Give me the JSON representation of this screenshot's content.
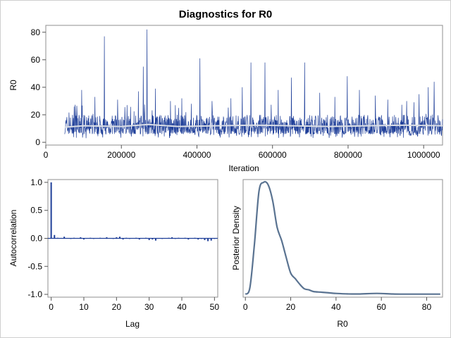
{
  "chart_data": [
    {
      "id": "trace",
      "type": "line",
      "title": "Diagnostics for R0",
      "xlabel": "Iteration",
      "ylabel": "R0",
      "xlim": [
        0,
        1050000
      ],
      "ylim": [
        -2,
        85
      ],
      "xticks": [
        0,
        200000,
        400000,
        600000,
        800000,
        1000000
      ],
      "xtick_labels": [
        "0",
        "200000",
        "400000",
        "600000",
        "800000",
        "1000000"
      ],
      "yticks": [
        0,
        20,
        40,
        60,
        80
      ],
      "ytick_labels": [
        "0",
        "20",
        "40",
        "60",
        "80"
      ],
      "series": [
        {
          "color": "#1f3f99",
          "x_range": [
            50000,
            1050000
          ],
          "typical_range": [
            4,
            24
          ],
          "spikes": [
            {
              "x": 75000,
              "y": 26
            },
            {
              "x": 95000,
              "y": 38
            },
            {
              "x": 130000,
              "y": 33
            },
            {
              "x": 155000,
              "y": 77
            },
            {
              "x": 190000,
              "y": 31
            },
            {
              "x": 215000,
              "y": 27
            },
            {
              "x": 245000,
              "y": 37
            },
            {
              "x": 258000,
              "y": 55
            },
            {
              "x": 268000,
              "y": 82
            },
            {
              "x": 290000,
              "y": 39
            },
            {
              "x": 330000,
              "y": 30
            },
            {
              "x": 360000,
              "y": 32
            },
            {
              "x": 385000,
              "y": 28
            },
            {
              "x": 408000,
              "y": 61
            },
            {
              "x": 440000,
              "y": 30
            },
            {
              "x": 490000,
              "y": 32
            },
            {
              "x": 520000,
              "y": 40
            },
            {
              "x": 543000,
              "y": 58
            },
            {
              "x": 580000,
              "y": 58
            },
            {
              "x": 615000,
              "y": 38
            },
            {
              "x": 650000,
              "y": 47
            },
            {
              "x": 685000,
              "y": 58
            },
            {
              "x": 725000,
              "y": 36
            },
            {
              "x": 765000,
              "y": 33
            },
            {
              "x": 798000,
              "y": 48
            },
            {
              "x": 830000,
              "y": 38
            },
            {
              "x": 872000,
              "y": 34
            },
            {
              "x": 905000,
              "y": 31
            },
            {
              "x": 955000,
              "y": 30
            },
            {
              "x": 988000,
              "y": 35
            },
            {
              "x": 1012000,
              "y": 40
            },
            {
              "x": 1028000,
              "y": 44
            }
          ]
        },
        {
          "color": "#d9dde6",
          "x": [
            50000,
            100000,
            200000,
            270000,
            350000,
            450000,
            550000,
            650000,
            750000,
            850000,
            950000,
            1050000
          ],
          "values": [
            11,
            12,
            11.5,
            13,
            11.5,
            12,
            12.5,
            12,
            11.5,
            12,
            12.5,
            12
          ]
        }
      ]
    },
    {
      "id": "acf",
      "type": "bar",
      "xlabel": "Lag",
      "ylabel": "Autocorrelation",
      "xlim": [
        -1,
        51
      ],
      "ylim": [
        -1.05,
        1.05
      ],
      "xticks": [
        0,
        10,
        20,
        30,
        40,
        50
      ],
      "xtick_labels": [
        "0",
        "10",
        "20",
        "30",
        "40",
        "50"
      ],
      "yticks": [
        -1.0,
        -0.5,
        0.0,
        0.5,
        1.0
      ],
      "ytick_labels": [
        "-1.0",
        "-0.5",
        "0.0",
        "0.5",
        "1.0"
      ],
      "color": "#1f3f99",
      "x": [
        0,
        1,
        2,
        3,
        4,
        5,
        6,
        7,
        8,
        9,
        10,
        11,
        12,
        13,
        14,
        15,
        16,
        17,
        18,
        19,
        20,
        21,
        22,
        23,
        24,
        25,
        26,
        27,
        28,
        29,
        30,
        31,
        32,
        33,
        34,
        35,
        36,
        37,
        38,
        39,
        40,
        41,
        42,
        43,
        44,
        45,
        46,
        47,
        48,
        49,
        50
      ],
      "values": [
        1.0,
        0.06,
        0.01,
        0.0,
        0.03,
        0.0,
        -0.01,
        0.01,
        0.0,
        0.02,
        -0.02,
        0.0,
        0.01,
        -0.01,
        0.0,
        0.01,
        0.0,
        0.02,
        0.0,
        -0.01,
        0.02,
        0.03,
        -0.02,
        0.01,
        -0.01,
        0.0,
        0.01,
        -0.02,
        0.0,
        0.01,
        -0.03,
        -0.02,
        -0.04,
        0.0,
        -0.01,
        0.0,
        0.01,
        0.02,
        -0.01,
        0.01,
        0.0,
        0.01,
        -0.02,
        0.0,
        0.01,
        -0.02,
        -0.01,
        -0.03,
        -0.05,
        -0.04,
        -0.01
      ]
    },
    {
      "id": "density",
      "type": "line",
      "xlabel": "R0",
      "ylabel": "Posterior Density",
      "xlim": [
        -1,
        87
      ],
      "ylim": [
        0,
        1.0
      ],
      "xticks": [
        0,
        20,
        40,
        60,
        80
      ],
      "xtick_labels": [
        "0",
        "20",
        "40",
        "60",
        "80"
      ],
      "yticks": [],
      "series": [
        {
          "color": "#5a7391",
          "x": [
            0,
            2,
            4,
            6,
            8,
            10,
            12,
            14,
            16,
            18,
            20,
            22,
            24,
            26,
            28,
            30,
            33,
            36,
            40,
            45,
            50,
            58,
            65,
            70,
            75,
            80,
            86
          ],
          "values": [
            0.0,
            0.06,
            0.45,
            0.92,
            1.0,
            0.98,
            0.84,
            0.6,
            0.48,
            0.33,
            0.19,
            0.14,
            0.09,
            0.05,
            0.04,
            0.025,
            0.02,
            0.015,
            0.008,
            0.004,
            0.003,
            0.008,
            0.003,
            0.002,
            0.002,
            0.002,
            0.002
          ]
        }
      ]
    }
  ]
}
